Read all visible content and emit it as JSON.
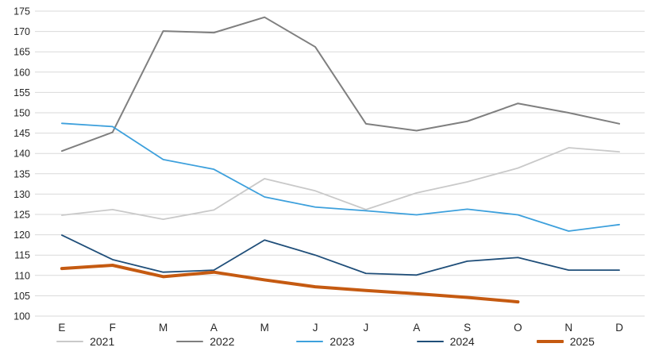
{
  "chart_data": {
    "type": "line",
    "title": "",
    "xlabel": "",
    "ylabel": "",
    "ylim": [
      100,
      175
    ],
    "ytick_step": 5,
    "grid": true,
    "legend_position": "bottom",
    "categories": [
      "E",
      "F",
      "M",
      "A",
      "M",
      "J",
      "J",
      "A",
      "S",
      "O",
      "N",
      "D"
    ],
    "colors": {
      "gridline": "#d9d9d9",
      "axis_text": "#262626",
      "background": "#ffffff"
    },
    "series": [
      {
        "name": "2021",
        "color": "#c9c9c9",
        "stroke_width": 1.8,
        "values": [
          124.8,
          126.2,
          123.8,
          126.1,
          133.8,
          130.8,
          126.2,
          130.3,
          133.0,
          136.4,
          141.4,
          140.4
        ]
      },
      {
        "name": "2022",
        "color": "#7f7f7f",
        "stroke_width": 2,
        "values": [
          140.6,
          145.2,
          170.1,
          169.7,
          173.5,
          166.2,
          147.3,
          145.6,
          147.9,
          152.3,
          150.0,
          147.3
        ]
      },
      {
        "name": "2023",
        "color": "#3da0dc",
        "stroke_width": 1.8,
        "values": [
          147.4,
          146.6,
          138.5,
          136.1,
          129.3,
          126.8,
          125.9,
          124.9,
          126.3,
          124.9,
          120.9,
          122.5
        ]
      },
      {
        "name": "2024",
        "color": "#1f4e79",
        "stroke_width": 1.8,
        "values": [
          119.9,
          113.9,
          110.8,
          111.3,
          118.7,
          115.0,
          110.5,
          110.1,
          113.5,
          114.4,
          111.3,
          111.3
        ]
      },
      {
        "name": "2025",
        "color": "#c55a11",
        "stroke_width": 4,
        "values": [
          111.7,
          112.5,
          109.7,
          110.8,
          108.9,
          107.2,
          106.3,
          105.5,
          104.6,
          103.5
        ]
      }
    ]
  }
}
